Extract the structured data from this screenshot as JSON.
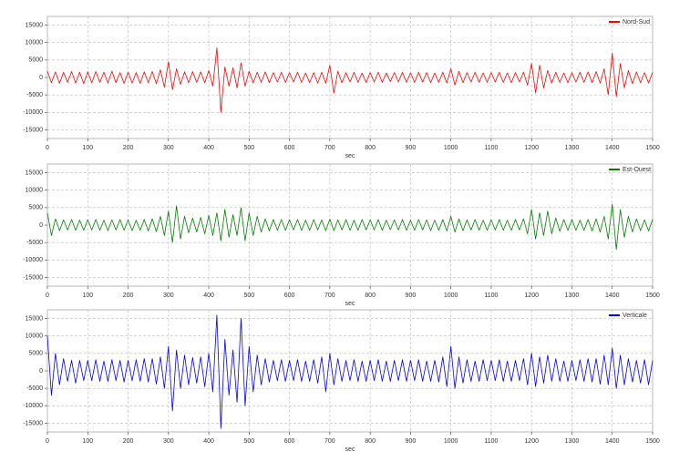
{
  "chart_data": [
    {
      "type": "line",
      "xlabel": "sec",
      "legend": "upper right",
      "grid": true,
      "xlim": [
        0,
        1500
      ],
      "xticks": [
        0,
        100,
        200,
        300,
        400,
        500,
        600,
        700,
        800,
        900,
        1000,
        1100,
        1200,
        1300,
        1400,
        1500
      ],
      "ylim": [
        -17500,
        17500
      ],
      "yticks": [
        -15000,
        -10000,
        -5000,
        0,
        5000,
        10000,
        15000
      ],
      "x": [
        0,
        10,
        20,
        30,
        40,
        50,
        60,
        70,
        80,
        90,
        100,
        110,
        120,
        130,
        140,
        150,
        160,
        170,
        180,
        190,
        200,
        210,
        220,
        230,
        240,
        250,
        260,
        270,
        280,
        290,
        300,
        310,
        320,
        330,
        340,
        350,
        360,
        370,
        380,
        390,
        400,
        410,
        420,
        430,
        440,
        450,
        460,
        470,
        480,
        490,
        500,
        510,
        520,
        530,
        540,
        550,
        560,
        570,
        580,
        590,
        600,
        610,
        620,
        630,
        640,
        650,
        660,
        670,
        680,
        690,
        700,
        710,
        720,
        730,
        740,
        750,
        760,
        770,
        780,
        790,
        800,
        810,
        820,
        830,
        840,
        850,
        860,
        870,
        880,
        890,
        900,
        910,
        920,
        930,
        940,
        950,
        960,
        970,
        980,
        990,
        1000,
        1010,
        1020,
        1030,
        1040,
        1050,
        1060,
        1070,
        1080,
        1090,
        1100,
        1110,
        1120,
        1130,
        1140,
        1150,
        1160,
        1170,
        1180,
        1190,
        1200,
        1210,
        1220,
        1230,
        1240,
        1250,
        1260,
        1270,
        1280,
        1290,
        1300,
        1310,
        1320,
        1330,
        1340,
        1350,
        1360,
        1370,
        1380,
        1390,
        1400,
        1410,
        1420,
        1430,
        1440,
        1450,
        1460,
        1470,
        1480,
        1490,
        1500
      ],
      "series": [
        {
          "name": "Nord-Sud",
          "color": "#ff0000",
          "values": [
            1800,
            -1500,
            1600,
            -1700,
            1500,
            -1400,
            1700,
            -1600,
            1500,
            -1800,
            1600,
            -1500,
            1700,
            -1400,
            1500,
            -1600,
            1800,
            -1500,
            1400,
            -1700,
            1500,
            -1600,
            1400,
            -1700,
            1600,
            -1500,
            1700,
            -1800,
            2200,
            -2800,
            4500,
            -3500,
            2500,
            -2000,
            1600,
            -1500,
            1700,
            -1400,
            1600,
            -1500,
            2000,
            -2500,
            8500,
            -10000,
            3000,
            -2500,
            2800,
            -3000,
            4200,
            -2500,
            1800,
            -1600,
            1500,
            -1400,
            1600,
            -1500,
            1400,
            -1300,
            1500,
            -1400,
            1400,
            -1300,
            1500,
            -1400,
            1300,
            -1500,
            1400,
            -1600,
            1500,
            -1700,
            3500,
            -4500,
            1800,
            -1500,
            1400,
            -1300,
            1500,
            -1400,
            1300,
            -1500,
            1400,
            -1300,
            1500,
            -1400,
            1300,
            -1200,
            1400,
            -1300,
            1500,
            -1400,
            1300,
            -1400,
            1500,
            -1300,
            1400,
            -1500,
            1300,
            -1400,
            1500,
            -1600,
            2500,
            -2200,
            1800,
            -1500,
            1400,
            -1300,
            1500,
            -1400,
            1300,
            -1400,
            1400,
            -1300,
            1500,
            -1400,
            1300,
            -1500,
            1400,
            -1300,
            1500,
            -2200,
            4000,
            -4500,
            3500,
            -3000,
            2000,
            -1600,
            1500,
            -1400,
            1300,
            -1500,
            1400,
            -1300,
            1500,
            -1400,
            1600,
            -1500,
            1700,
            -1600,
            2500,
            -5000,
            7000,
            -5500,
            4000,
            -3000,
            2000,
            -1800,
            1600,
            -1500,
            1400,
            -1600,
            1500
          ]
        }
      ]
    },
    {
      "type": "line",
      "xlabel": "sec",
      "legend": "upper right",
      "grid": true,
      "xlim": [
        0,
        1500
      ],
      "xticks": [
        0,
        100,
        200,
        300,
        400,
        500,
        600,
        700,
        800,
        900,
        1000,
        1100,
        1200,
        1300,
        1400,
        1500
      ],
      "ylim": [
        -17500,
        17500
      ],
      "yticks": [
        -15000,
        -10000,
        -5000,
        0,
        5000,
        10000,
        15000
      ],
      "x": [
        0,
        10,
        20,
        30,
        40,
        50,
        60,
        70,
        80,
        90,
        100,
        110,
        120,
        130,
        140,
        150,
        160,
        170,
        180,
        190,
        200,
        210,
        220,
        230,
        240,
        250,
        260,
        270,
        280,
        290,
        300,
        310,
        320,
        330,
        340,
        350,
        360,
        370,
        380,
        390,
        400,
        410,
        420,
        430,
        440,
        450,
        460,
        470,
        480,
        490,
        500,
        510,
        520,
        530,
        540,
        550,
        560,
        570,
        580,
        590,
        600,
        610,
        620,
        630,
        640,
        650,
        660,
        670,
        680,
        690,
        700,
        710,
        720,
        730,
        740,
        750,
        760,
        770,
        780,
        790,
        800,
        810,
        820,
        830,
        840,
        850,
        860,
        870,
        880,
        890,
        900,
        910,
        920,
        930,
        940,
        950,
        960,
        970,
        980,
        990,
        1000,
        1010,
        1020,
        1030,
        1040,
        1050,
        1060,
        1070,
        1080,
        1090,
        1100,
        1110,
        1120,
        1130,
        1140,
        1150,
        1160,
        1170,
        1180,
        1190,
        1200,
        1210,
        1220,
        1230,
        1240,
        1250,
        1260,
        1270,
        1280,
        1290,
        1300,
        1310,
        1320,
        1330,
        1340,
        1350,
        1360,
        1370,
        1380,
        1390,
        1400,
        1410,
        1420,
        1430,
        1440,
        1450,
        1460,
        1470,
        1480,
        1490,
        1500
      ],
      "series": [
        {
          "name": "Est-Ouest",
          "color": "#008000",
          "values": [
            3500,
            -3000,
            1800,
            -1600,
            1500,
            -1400,
            1600,
            -1500,
            1400,
            -1500,
            1500,
            -1400,
            1600,
            -1500,
            1400,
            -1600,
            1500,
            -1400,
            1600,
            -1500,
            1500,
            -1600,
            1400,
            -1500,
            1600,
            -1700,
            1800,
            -1900,
            2500,
            -3000,
            4000,
            -5000,
            5500,
            -4000,
            2500,
            -2200,
            2000,
            -2000,
            2200,
            -2500,
            2800,
            -3000,
            3500,
            -4500,
            4500,
            -3500,
            3000,
            -3000,
            5000,
            -4500,
            3500,
            -3000,
            2500,
            -2000,
            1800,
            -1700,
            1600,
            -1500,
            1600,
            -1500,
            1500,
            -1400,
            1600,
            -1500,
            1400,
            -1500,
            1600,
            -1400,
            1500,
            -1600,
            1700,
            -1600,
            1500,
            -1400,
            1600,
            -1500,
            1400,
            -1500,
            1600,
            -1400,
            1500,
            -1400,
            1600,
            -1500,
            1400,
            -1300,
            1500,
            -1400,
            1600,
            -1500,
            1400,
            -1500,
            1600,
            -1400,
            1500,
            -1600,
            1400,
            -1500,
            1600,
            -1700,
            2500,
            -2000,
            1800,
            -1600,
            1500,
            -1400,
            1600,
            -1500,
            1400,
            -1500,
            1500,
            -1400,
            1600,
            -1500,
            1400,
            -1500,
            1600,
            -1400,
            1800,
            -2500,
            4500,
            -4000,
            3500,
            -3000,
            4000,
            -2500,
            2000,
            -1800,
            1600,
            -1500,
            1600,
            -1500,
            1400,
            -1500,
            1600,
            -1700,
            1800,
            -2000,
            2500,
            -4000,
            6000,
            -7000,
            4500,
            -3500,
            2500,
            -2000,
            1800,
            -1600,
            1500,
            -1700,
            1600
          ]
        }
      ]
    },
    {
      "type": "line",
      "xlabel": "sec",
      "legend": "upper right",
      "grid": true,
      "xlim": [
        0,
        1500
      ],
      "xticks": [
        0,
        100,
        200,
        300,
        400,
        500,
        600,
        700,
        800,
        900,
        1000,
        1100,
        1200,
        1300,
        1400,
        1500
      ],
      "ylim": [
        -17500,
        17500
      ],
      "yticks": [
        -15000,
        -10000,
        -5000,
        0,
        5000,
        10000,
        15000
      ],
      "x": [
        0,
        10,
        20,
        30,
        40,
        50,
        60,
        70,
        80,
        90,
        100,
        110,
        120,
        130,
        140,
        150,
        160,
        170,
        180,
        190,
        200,
        210,
        220,
        230,
        240,
        250,
        260,
        270,
        280,
        290,
        300,
        310,
        320,
        330,
        340,
        350,
        360,
        370,
        380,
        390,
        400,
        410,
        420,
        430,
        440,
        450,
        460,
        470,
        480,
        490,
        500,
        510,
        520,
        530,
        540,
        550,
        560,
        570,
        580,
        590,
        600,
        610,
        620,
        630,
        640,
        650,
        660,
        670,
        680,
        690,
        700,
        710,
        720,
        730,
        740,
        750,
        760,
        770,
        780,
        790,
        800,
        810,
        820,
        830,
        840,
        850,
        860,
        870,
        880,
        890,
        900,
        910,
        920,
        930,
        940,
        950,
        960,
        970,
        980,
        990,
        1000,
        1010,
        1020,
        1030,
        1040,
        1050,
        1060,
        1070,
        1080,
        1090,
        1100,
        1110,
        1120,
        1130,
        1140,
        1150,
        1160,
        1170,
        1180,
        1190,
        1200,
        1210,
        1220,
        1230,
        1240,
        1250,
        1260,
        1270,
        1280,
        1290,
        1300,
        1310,
        1320,
        1330,
        1340,
        1350,
        1360,
        1370,
        1380,
        1390,
        1400,
        1410,
        1420,
        1430,
        1440,
        1450,
        1460,
        1470,
        1480,
        1490,
        1500
      ],
      "series": [
        {
          "name": "Verticale",
          "color": "#0000ff",
          "values": [
            10000,
            -7000,
            5000,
            -4000,
            3500,
            -3000,
            3000,
            -3500,
            3000,
            -2800,
            3000,
            -2800,
            3200,
            -3000,
            2800,
            -3000,
            3200,
            -2800,
            3000,
            -3200,
            3000,
            -2800,
            3200,
            -3000,
            3500,
            -3200,
            3500,
            -3800,
            4000,
            -5000,
            7000,
            -11500,
            6000,
            -5000,
            4500,
            -4000,
            3800,
            -3500,
            4000,
            -4500,
            5000,
            -6000,
            16000,
            -16500,
            9000,
            -7000,
            6000,
            -9000,
            15000,
            -10000,
            7000,
            -6000,
            4500,
            -4000,
            3500,
            -3200,
            3000,
            -2800,
            3200,
            -3000,
            3000,
            -2800,
            3200,
            -3000,
            2800,
            -3000,
            3200,
            -3500,
            4000,
            -6000,
            5000,
            -4000,
            3500,
            -3000,
            3000,
            -2800,
            3200,
            -3000,
            2800,
            -3000,
            3000,
            -2800,
            3200,
            -3000,
            2800,
            -3000,
            3000,
            -2800,
            3200,
            -3000,
            3000,
            -2800,
            3200,
            -3000,
            2800,
            -3000,
            3000,
            -3200,
            4000,
            -4500,
            7000,
            -5000,
            4000,
            -3500,
            3200,
            -3000,
            2800,
            -3000,
            3200,
            -2800,
            3000,
            -2800,
            3200,
            -3000,
            2800,
            -3000,
            3000,
            -2800,
            3500,
            -4000,
            5000,
            -4500,
            4000,
            -3500,
            4500,
            -3000,
            3500,
            -3000,
            2800,
            -3000,
            3000,
            -2800,
            3200,
            -3000,
            3500,
            -3200,
            3500,
            -3800,
            4500,
            -4000,
            6500,
            -5000,
            4500,
            -4000,
            3500,
            -3200,
            3000,
            -3500,
            3200,
            -4000,
            3000
          ]
        }
      ]
    }
  ]
}
